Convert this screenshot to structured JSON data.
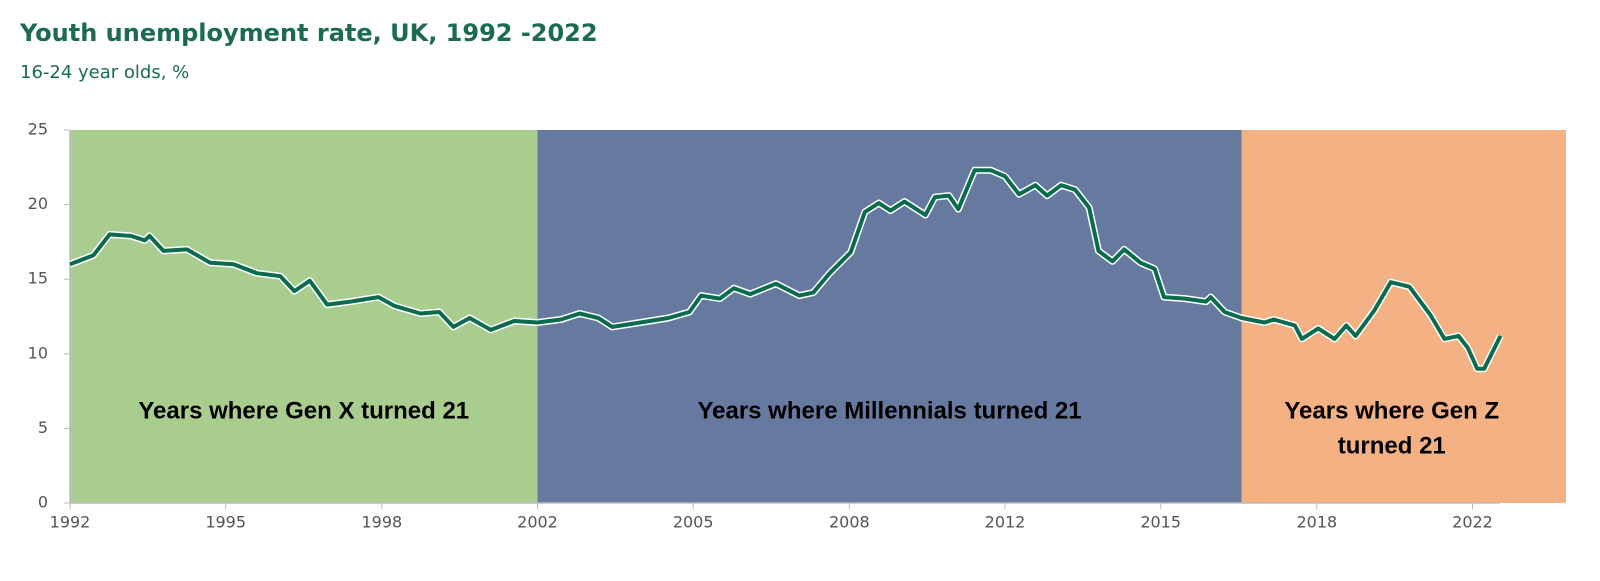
{
  "chart_data": {
    "type": "line",
    "title": "Youth unemployment rate, UK, 1992 -2022",
    "subtitle": "16-24 year olds, %",
    "xlim": [
      1992,
      2024
    ],
    "ylim": [
      0,
      25
    ],
    "xticks": [
      {
        "value": 1992,
        "label": "1992"
      },
      {
        "value": 1995.33,
        "label": "1995"
      },
      {
        "value": 1998.67,
        "label": "1998"
      },
      {
        "value": 2002,
        "label": "2002"
      },
      {
        "value": 2005.33,
        "label": "2005"
      },
      {
        "value": 2008.67,
        "label": "2008"
      },
      {
        "value": 2012,
        "label": "2012"
      },
      {
        "value": 2015.33,
        "label": "2015"
      },
      {
        "value": 2018.67,
        "label": "2018"
      },
      {
        "value": 2022,
        "label": "2022"
      }
    ],
    "yticks": [
      0,
      5,
      10,
      15,
      20,
      25
    ],
    "bands": [
      {
        "start": 1992,
        "end": 2002,
        "color": "#a9cd8f",
        "label": [
          "Years where Gen X turned 21"
        ]
      },
      {
        "start": 2002,
        "end": 2017.06,
        "color": "#66799f",
        "label": [
          "Years where Millennials turned 21"
        ]
      },
      {
        "start": 2017.06,
        "end": 2024,
        "color": "#f4b183",
        "label": [
          "Years where Gen Z",
          "turned 21"
        ]
      }
    ],
    "series": [
      {
        "color": "#0b6b4e",
        "x": [
          1992,
          1992.5,
          1992.85,
          1993.3,
          1993.6,
          1993.7,
          1994,
          1994.5,
          1995,
          1995.5,
          1996,
          1996.5,
          1996.8,
          1997.13,
          1997.5,
          1998,
          1998.6,
          1998.95,
          1999.5,
          1999.9,
          2000.2,
          2000.55,
          2001,
          2001.5,
          2002,
          2002.5,
          2002.9,
          2003.3,
          2003.6,
          2004.2,
          2004.8,
          2005.25,
          2005.5,
          2005.9,
          2006.2,
          2006.55,
          2007.1,
          2007.6,
          2007.9,
          2008.25,
          2008.7,
          2009,
          2009.3,
          2009.55,
          2009.85,
          2010.3,
          2010.5,
          2010.8,
          2011,
          2011.35,
          2011.7,
          2012,
          2012.3,
          2012.65,
          2012.9,
          2013.2,
          2013.5,
          2013.8,
          2014,
          2014.3,
          2014.55,
          2014.9,
          2015.2,
          2015.4,
          2015.85,
          2016.3,
          2016.4,
          2016.7,
          2017.06,
          2017.55,
          2017.75,
          2018.2,
          2018.35,
          2018.7,
          2019.05,
          2019.3,
          2019.5,
          2019.9,
          2020.25,
          2020.65,
          2021.1,
          2021.4,
          2021.7,
          2021.9,
          2022.1,
          2022.25,
          2022.6
        ],
        "values": [
          16,
          16.6,
          18,
          17.9,
          17.6,
          17.9,
          16.9,
          17.0,
          16.1,
          16.0,
          15.4,
          15.2,
          14.2,
          14.9,
          13.3,
          13.5,
          13.8,
          13.2,
          12.7,
          12.8,
          11.8,
          12.4,
          11.6,
          12.2,
          12.1,
          12.3,
          12.7,
          12.4,
          11.8,
          12.1,
          12.4,
          12.8,
          13.9,
          13.7,
          14.4,
          14.0,
          14.7,
          13.9,
          14.1,
          15.4,
          16.8,
          19.5,
          20.1,
          19.6,
          20.2,
          19.3,
          20.5,
          20.6,
          19.7,
          22.3,
          22.3,
          21.9,
          20.7,
          21.3,
          20.6,
          21.3,
          21.0,
          19.8,
          16.9,
          16.2,
          17.0,
          16.1,
          15.7,
          13.8,
          13.7,
          13.5,
          13.8,
          12.8,
          12.4,
          12.1,
          12.3,
          11.9,
          11.0,
          11.7,
          11.0,
          11.9,
          11.2,
          12.9,
          14.8,
          14.5,
          12.6,
          11.0,
          11.2,
          10.4,
          9.0,
          9.0,
          11.2
        ]
      }
    ]
  }
}
